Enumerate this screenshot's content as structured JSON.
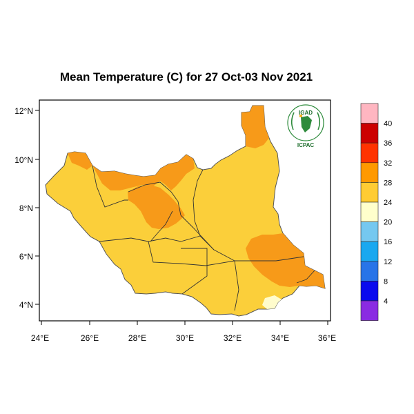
{
  "title": "Mean Temperature (C) for 27 Oct-03 Nov 2021",
  "map": {
    "x_axis_labels": [
      "24°E",
      "26°E",
      "28°E",
      "30°E",
      "32°E",
      "34°E",
      "36°E"
    ],
    "y_axis_labels": [
      "12°N",
      "10°N",
      "8°N",
      "6°N",
      "4°N"
    ],
    "logo": {
      "top_text": "IGAD",
      "bottom_text": "ICPAC"
    }
  },
  "legend": {
    "labels": [
      "40",
      "36",
      "32",
      "28",
      "24",
      "20",
      "16",
      "12",
      "8",
      "4"
    ],
    "colors_top_to_bottom": [
      "#ffb6c1",
      "#cc0000",
      "#ff3300",
      "#ff9900",
      "#ffcc33",
      "#ffffcc",
      "#75c8f0",
      "#19a8f0",
      "#2874e8",
      "#0a0aee",
      "#8a2be2"
    ]
  },
  "colors": {
    "land_28_32": "#fbcf3a",
    "land_32_36": "#f79a19",
    "land_24_28": "#fffccc"
  }
}
